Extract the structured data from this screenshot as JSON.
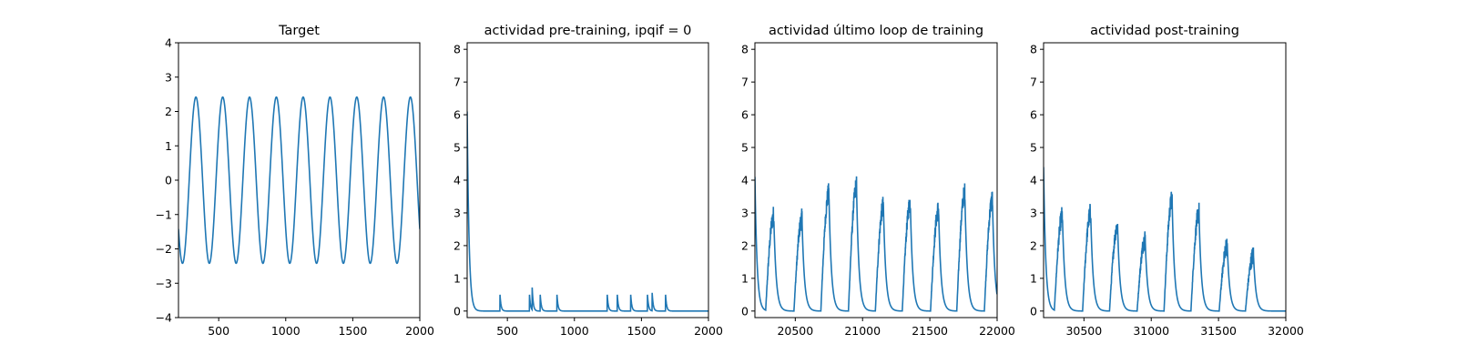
{
  "chart_data": [
    {
      "type": "line",
      "title": "Target",
      "xlabel": "",
      "ylabel": "",
      "xlim": [
        200,
        2000
      ],
      "ylim": [
        -4,
        4
      ],
      "xticks": [
        500,
        1000,
        1500,
        2000
      ],
      "yticks": [
        -4,
        -3,
        -2,
        -1,
        0,
        1,
        2,
        3,
        4
      ],
      "grid": false,
      "color": "#1f77b4",
      "series": [
        {
          "model": "sinusoid",
          "amplitude": 2.42,
          "period": 200,
          "peak_at": 330,
          "x_start": 200,
          "x_end": 2000,
          "last_value": -0.9
        }
      ]
    },
    {
      "type": "line",
      "title": "actividad pre-training, ipqif = 0",
      "xlabel": "",
      "ylabel": "",
      "xlim": [
        200,
        2000
      ],
      "ylim": [
        -0.2,
        8.2
      ],
      "xticks": [
        500,
        1000,
        1500,
        2000
      ],
      "yticks": [
        0,
        1,
        2,
        3,
        4,
        5,
        6,
        7,
        8
      ],
      "grid": false,
      "color": "#1f77b4",
      "series": [
        {
          "model": "decaying_spikes",
          "start_value": 6.1,
          "decay": 14,
          "spike_times": [
            445,
            665,
            685,
            745,
            870,
            1245,
            1320,
            1420,
            1545,
            1580,
            1680
          ],
          "spike_heights": [
            0.5,
            0.5,
            0.68,
            0.5,
            0.5,
            0.5,
            0.5,
            0.5,
            0.5,
            0.55,
            0.5
          ],
          "spike_decay": 8
        }
      ]
    },
    {
      "type": "line",
      "title": "actividad último loop de training",
      "xlabel": "",
      "ylabel": "",
      "xlim": [
        20200,
        22000
      ],
      "ylim": [
        -0.2,
        8.2
      ],
      "xticks": [
        20500,
        21000,
        21500,
        22000
      ],
      "yticks": [
        0,
        1,
        2,
        3,
        4,
        5,
        6,
        7,
        8
      ],
      "grid": false,
      "color": "#1f77b4",
      "series": [
        {
          "model": "bursts",
          "start_value": 4.1,
          "decay": 16,
          "burst_onsets": [
            20280,
            20490,
            20690,
            20895,
            21095,
            21295,
            21505,
            21700,
            21905
          ],
          "burst_peaks": [
            2.9,
            2.8,
            3.6,
            3.8,
            3.2,
            3.3,
            3.1,
            3.6,
            3.4
          ],
          "burst_rise": 60,
          "end_value": 0.8
        }
      ]
    },
    {
      "type": "line",
      "title": "actividad post-training",
      "xlabel": "",
      "ylabel": "",
      "xlim": [
        30200,
        32000
      ],
      "ylim": [
        -0.2,
        8.2
      ],
      "xticks": [
        30500,
        31000,
        31500,
        32000
      ],
      "yticks": [
        0,
        1,
        2,
        3,
        4,
        5,
        6,
        7,
        8
      ],
      "grid": false,
      "color": "#1f77b4",
      "series": [
        {
          "model": "bursts",
          "start_value": 4.4,
          "decay": 16,
          "burst_onsets": [
            30280,
            30490,
            30690,
            30895,
            31095,
            31295,
            31505,
            31700
          ],
          "burst_peaks": [
            2.9,
            3.0,
            2.6,
            2.2,
            3.4,
            3.0,
            2.0,
            1.7
          ],
          "burst_rise": 60,
          "end_value": 0.0
        }
      ]
    }
  ]
}
